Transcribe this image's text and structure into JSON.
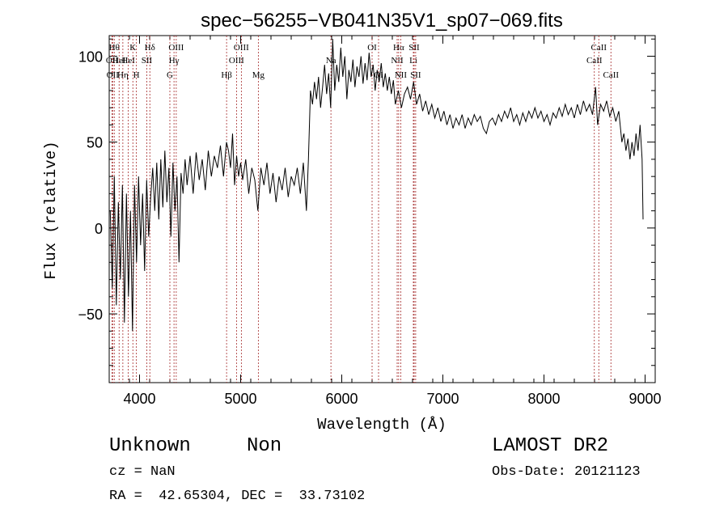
{
  "chart_data": {
    "type": "line",
    "title": "spec−56255−VB041N35V1_sp07−069.fits",
    "xlabel": "Wavelength (Å)",
    "ylabel": "Flux (relative)",
    "xlim": [
      3700,
      9100
    ],
    "ylim": [
      -90,
      112
    ],
    "xticks": [
      4000,
      5000,
      6000,
      7000,
      8000,
      9000
    ],
    "xtick_labels": [
      "4000",
      "5000",
      "6000",
      "7000",
      "8000",
      "9000"
    ],
    "yticks": [
      -50,
      0,
      50,
      100
    ],
    "ytick_labels": [
      "−50",
      "0",
      "50",
      "100"
    ],
    "line_color": "#000000",
    "marker_color": "#a52a2a",
    "grid": false,
    "series": [
      {
        "values_xy": [
          [
            3710,
            10
          ],
          [
            3730,
            -35
          ],
          [
            3750,
            30
          ],
          [
            3770,
            -45
          ],
          [
            3790,
            15
          ],
          [
            3810,
            -30
          ],
          [
            3830,
            25
          ],
          [
            3850,
            -55
          ],
          [
            3870,
            20
          ],
          [
            3890,
            -40
          ],
          [
            3910,
            10
          ],
          [
            3930,
            -60
          ],
          [
            3950,
            25
          ],
          [
            3970,
            -20
          ],
          [
            3990,
            30
          ],
          [
            4010,
            -10
          ],
          [
            4030,
            20
          ],
          [
            4050,
            -25
          ],
          [
            4070,
            28
          ],
          [
            4090,
            -5
          ],
          [
            4110,
            18
          ],
          [
            4130,
            35
          ],
          [
            4150,
            10
          ],
          [
            4170,
            38
          ],
          [
            4190,
            5
          ],
          [
            4210,
            40
          ],
          [
            4230,
            12
          ],
          [
            4250,
            45
          ],
          [
            4270,
            15
          ],
          [
            4290,
            35
          ],
          [
            4310,
            -5
          ],
          [
            4330,
            38
          ],
          [
            4350,
            10
          ],
          [
            4370,
            30
          ],
          [
            4390,
            -20
          ],
          [
            4410,
            32
          ],
          [
            4430,
            20
          ],
          [
            4450,
            40
          ],
          [
            4470,
            25
          ],
          [
            4500,
            42
          ],
          [
            4530,
            20
          ],
          [
            4560,
            44
          ],
          [
            4590,
            28
          ],
          [
            4620,
            40
          ],
          [
            4650,
            22
          ],
          [
            4680,
            45
          ],
          [
            4710,
            30
          ],
          [
            4740,
            42
          ],
          [
            4770,
            35
          ],
          [
            4800,
            48
          ],
          [
            4830,
            30
          ],
          [
            4860,
            50
          ],
          [
            4880,
            45
          ],
          [
            4900,
            35
          ],
          [
            4920,
            55
          ],
          [
            4940,
            25
          ],
          [
            4960,
            42
          ],
          [
            4980,
            30
          ],
          [
            5000,
            38
          ],
          [
            5020,
            28
          ],
          [
            5050,
            40
          ],
          [
            5080,
            20
          ],
          [
            5110,
            35
          ],
          [
            5140,
            28
          ],
          [
            5170,
            10
          ],
          [
            5200,
            35
          ],
          [
            5230,
            25
          ],
          [
            5260,
            38
          ],
          [
            5290,
            20
          ],
          [
            5320,
            32
          ],
          [
            5350,
            15
          ],
          [
            5380,
            30
          ],
          [
            5410,
            22
          ],
          [
            5440,
            35
          ],
          [
            5470,
            18
          ],
          [
            5500,
            30
          ],
          [
            5530,
            25
          ],
          [
            5560,
            35
          ],
          [
            5590,
            20
          ],
          [
            5620,
            38
          ],
          [
            5650,
            10
          ],
          [
            5670,
            40
          ],
          [
            5690,
            80
          ],
          [
            5710,
            72
          ],
          [
            5730,
            85
          ],
          [
            5750,
            75
          ],
          [
            5770,
            88
          ],
          [
            5790,
            70
          ],
          [
            5810,
            82
          ],
          [
            5830,
            95
          ],
          [
            5850,
            78
          ],
          [
            5870,
            90
          ],
          [
            5890,
            70
          ],
          [
            5910,
            110
          ],
          [
            5930,
            80
          ],
          [
            5950,
            95
          ],
          [
            5970,
            85
          ],
          [
            5990,
            105
          ],
          [
            6010,
            88
          ],
          [
            6030,
            100
          ],
          [
            6050,
            75
          ],
          [
            6070,
            92
          ],
          [
            6090,
            85
          ],
          [
            6110,
            98
          ],
          [
            6130,
            82
          ],
          [
            6150,
            94
          ],
          [
            6170,
            88
          ],
          [
            6190,
            100
          ],
          [
            6210,
            84
          ],
          [
            6230,
            96
          ],
          [
            6250,
            86
          ],
          [
            6270,
            102
          ],
          [
            6290,
            88
          ],
          [
            6310,
            95
          ],
          [
            6330,
            80
          ],
          [
            6350,
            92
          ],
          [
            6370,
            85
          ],
          [
            6390,
            96
          ],
          [
            6410,
            82
          ],
          [
            6430,
            90
          ],
          [
            6450,
            80
          ],
          [
            6470,
            88
          ],
          [
            6490,
            78
          ],
          [
            6510,
            86
          ],
          [
            6530,
            72
          ],
          [
            6560,
            80
          ],
          [
            6590,
            70
          ],
          [
            6620,
            78
          ],
          [
            6650,
            82
          ],
          [
            6680,
            75
          ],
          [
            6710,
            85
          ],
          [
            6740,
            72
          ],
          [
            6770,
            78
          ],
          [
            6800,
            68
          ],
          [
            6830,
            74
          ],
          [
            6860,
            66
          ],
          [
            6890,
            72
          ],
          [
            6920,
            64
          ],
          [
            6950,
            70
          ],
          [
            6980,
            62
          ],
          [
            7010,
            68
          ],
          [
            7040,
            60
          ],
          [
            7070,
            66
          ],
          [
            7100,
            58
          ],
          [
            7130,
            64
          ],
          [
            7160,
            60
          ],
          [
            7190,
            66
          ],
          [
            7220,
            58
          ],
          [
            7250,
            64
          ],
          [
            7280,
            60
          ],
          [
            7310,
            66
          ],
          [
            7340,
            62
          ],
          [
            7370,
            65
          ],
          [
            7400,
            58
          ],
          [
            7430,
            55
          ],
          [
            7460,
            62
          ],
          [
            7490,
            64
          ],
          [
            7520,
            60
          ],
          [
            7550,
            66
          ],
          [
            7580,
            62
          ],
          [
            7610,
            68
          ],
          [
            7640,
            64
          ],
          [
            7670,
            70
          ],
          [
            7700,
            62
          ],
          [
            7730,
            66
          ],
          [
            7760,
            60
          ],
          [
            7790,
            67
          ],
          [
            7820,
            62
          ],
          [
            7850,
            68
          ],
          [
            7880,
            64
          ],
          [
            7910,
            70
          ],
          [
            7940,
            64
          ],
          [
            7970,
            68
          ],
          [
            8000,
            62
          ],
          [
            8030,
            66
          ],
          [
            8060,
            60
          ],
          [
            8090,
            67
          ],
          [
            8120,
            64
          ],
          [
            8150,
            70
          ],
          [
            8180,
            65
          ],
          [
            8210,
            72
          ],
          [
            8240,
            66
          ],
          [
            8270,
            70
          ],
          [
            8300,
            64
          ],
          [
            8330,
            72
          ],
          [
            8360,
            66
          ],
          [
            8390,
            74
          ],
          [
            8420,
            68
          ],
          [
            8450,
            72
          ],
          [
            8480,
            66
          ],
          [
            8510,
            82
          ],
          [
            8530,
            60
          ],
          [
            8560,
            72
          ],
          [
            8590,
            68
          ],
          [
            8620,
            74
          ],
          [
            8650,
            65
          ],
          [
            8680,
            70
          ],
          [
            8710,
            62
          ],
          [
            8740,
            68
          ],
          [
            8770,
            50
          ],
          [
            8790,
            55
          ],
          [
            8810,
            45
          ],
          [
            8830,
            52
          ],
          [
            8850,
            40
          ],
          [
            8870,
            50
          ],
          [
            8890,
            42
          ],
          [
            8910,
            55
          ],
          [
            8930,
            45
          ],
          [
            8950,
            60
          ],
          [
            8970,
            40
          ],
          [
            8980,
            5
          ]
        ]
      }
    ],
    "lines": [
      {
        "x": 3750,
        "label": "Hθ",
        "row": 0
      },
      {
        "x": 3728,
        "label": "OII",
        "row": 1
      },
      {
        "x": 3734,
        "label": "OII",
        "row": 2
      },
      {
        "x": 3798,
        "label": "HeI",
        "row": 1
      },
      {
        "x": 3835,
        "label": "Hη",
        "row": 2
      },
      {
        "x": 3889,
        "label": "HeI",
        "row": 1
      },
      {
        "x": 3934,
        "label": "K",
        "row": 0
      },
      {
        "x": 3969,
        "label": "H",
        "row": 2
      },
      {
        "x": 4072,
        "label": "SII",
        "row": 1
      },
      {
        "x": 4102,
        "label": "Hδ",
        "row": 0
      },
      {
        "x": 4300,
        "label": "G",
        "row": 2
      },
      {
        "x": 4341,
        "label": "Hγ",
        "row": 1
      },
      {
        "x": 4363,
        "label": "OIII",
        "row": 0
      },
      {
        "x": 4861,
        "label": "Hβ",
        "row": 2
      },
      {
        "x": 4959,
        "label": "OIII",
        "row": 1
      },
      {
        "x": 5007,
        "label": "OIII",
        "row": 0
      },
      {
        "x": 5175,
        "label": "Mg",
        "row": 2
      },
      {
        "x": 5893,
        "label": "Na",
        "row": 1
      },
      {
        "x": 6300,
        "label": "OI",
        "row": 0
      },
      {
        "x": 6364,
        "label": "OI",
        "row": 2
      },
      {
        "x": 6548,
        "label": "NII",
        "row": 1
      },
      {
        "x": 6563,
        "label": "Hα",
        "row": 0
      },
      {
        "x": 6583,
        "label": "NII",
        "row": 2
      },
      {
        "x": 6708,
        "label": "Li",
        "row": 1
      },
      {
        "x": 6716,
        "label": "SII",
        "row": 0
      },
      {
        "x": 6731,
        "label": "SII",
        "row": 2
      },
      {
        "x": 8498,
        "label": "CaII",
        "row": 1
      },
      {
        "x": 8542,
        "label": "CaII",
        "row": 0
      },
      {
        "x": 8662,
        "label": "CaII",
        "row": 2
      }
    ]
  },
  "info": {
    "class_label": "Unknown",
    "subclass_label": "Non",
    "survey": "LAMOST DR2",
    "cz": "cz = NaN",
    "obs_date": "Obs-Date: 20121123",
    "coords": "RA =  42.65304, DEC =  33.73102"
  }
}
